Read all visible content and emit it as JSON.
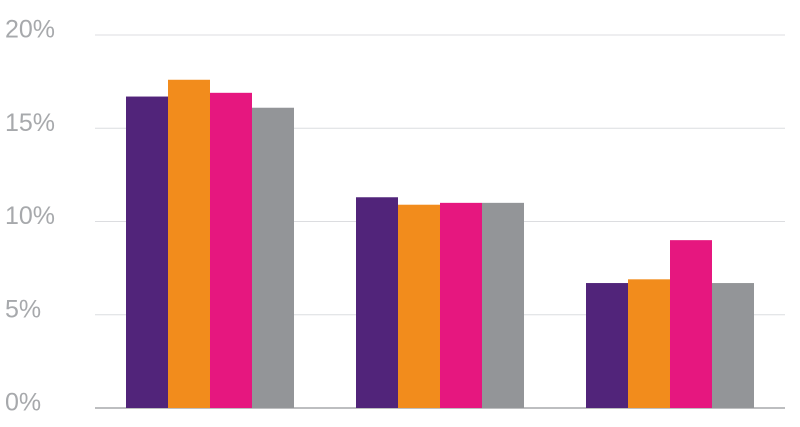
{
  "chart_data": {
    "type": "bar",
    "categories": [
      null,
      null,
      null
    ],
    "series": [
      {
        "color": "#51247a",
        "values": [
          16.7,
          11.3,
          6.7
        ]
      },
      {
        "color": "#f28c1c",
        "values": [
          17.6,
          10.9,
          6.9
        ]
      },
      {
        "color": "#e6177f",
        "values": [
          16.9,
          11.0,
          9.0
        ]
      },
      {
        "color": "#939598",
        "values": [
          16.1,
          11.0,
          6.7
        ]
      }
    ],
    "ylim": [
      0,
      20
    ],
    "yticks": [
      {
        "value": 0,
        "label": "0%"
      },
      {
        "value": 5,
        "label": "5%"
      },
      {
        "value": 10,
        "label": "10%"
      },
      {
        "value": 15,
        "label": "15%"
      },
      {
        "value": 20,
        "label": "20%"
      }
    ],
    "grid": true
  }
}
